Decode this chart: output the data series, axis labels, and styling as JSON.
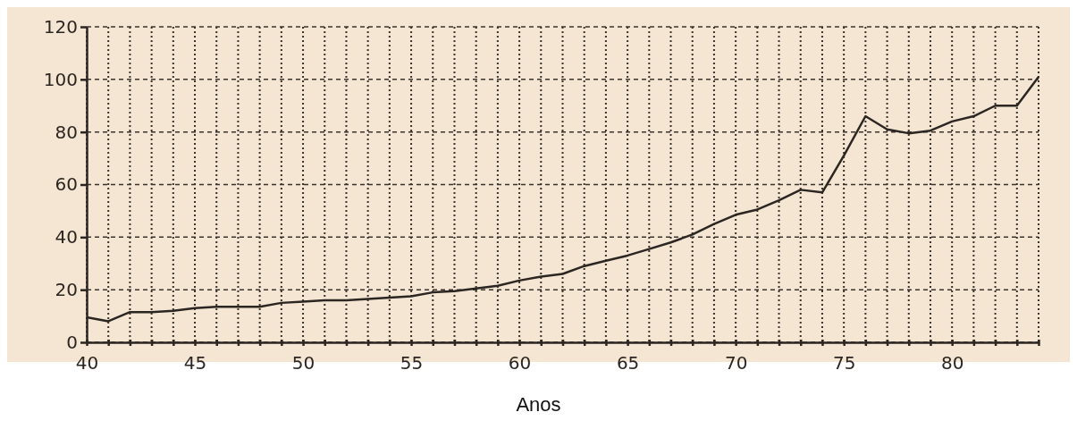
{
  "chart_data": {
    "type": "line",
    "xlabel": "Anos",
    "x": [
      40,
      41,
      42,
      43,
      44,
      45,
      46,
      47,
      48,
      49,
      50,
      51,
      52,
      53,
      54,
      55,
      56,
      57,
      58,
      59,
      60,
      61,
      62,
      63,
      64,
      65,
      66,
      67,
      68,
      69,
      70,
      71,
      72,
      73,
      74,
      75,
      76,
      77,
      78,
      79,
      80,
      81,
      82,
      83,
      84
    ],
    "series": [
      {
        "color": "#2b2622",
        "values": [
          9.5,
          8,
          11.5,
          11.5,
          12,
          13,
          13.5,
          13.5,
          13.5,
          15,
          15.5,
          16,
          16,
          16.5,
          17,
          17.5,
          19,
          19.5,
          20.5,
          21.5,
          23.5,
          25,
          26,
          29,
          31,
          33,
          35.5,
          38,
          41,
          45,
          48.5,
          50.5,
          54,
          58,
          57,
          71,
          86,
          81,
          79.5,
          80.5,
          84,
          86,
          90,
          90,
          101
        ]
      }
    ],
    "xlim": [
      40,
      84
    ],
    "xticks": [
      40,
      {
        "value": 41,
        "label": null
      },
      {
        "value": 42,
        "label": null
      },
      {
        "value": 43,
        "label": null
      },
      {
        "value": 44,
        "label": null
      },
      45,
      {
        "value": 46,
        "label": null
      },
      {
        "value": 47,
        "label": null
      },
      {
        "value": 48,
        "label": null
      },
      {
        "value": 49,
        "label": null
      },
      50,
      {
        "value": 51,
        "label": null
      },
      {
        "value": 52,
        "label": null
      },
      {
        "value": 53,
        "label": null
      },
      {
        "value": 54,
        "label": null
      },
      55,
      {
        "value": 56,
        "label": null
      },
      {
        "value": 57,
        "label": null
      },
      {
        "value": 58,
        "label": null
      },
      {
        "value": 59,
        "label": null
      },
      60,
      {
        "value": 61,
        "label": null
      },
      {
        "value": 62,
        "label": null
      },
      {
        "value": 63,
        "label": null
      },
      {
        "value": 64,
        "label": null
      },
      65,
      {
        "value": 66,
        "label": null
      },
      {
        "value": 67,
        "label": null
      },
      {
        "value": 68,
        "label": null
      },
      {
        "value": 69,
        "label": null
      },
      70,
      {
        "value": 71,
        "label": null
      },
      {
        "value": 72,
        "label": null
      },
      {
        "value": 73,
        "label": null
      },
      {
        "value": 74,
        "label": null
      },
      75,
      {
        "value": 76,
        "label": null
      },
      {
        "value": 77,
        "label": null
      },
      {
        "value": 78,
        "label": null
      },
      {
        "value": 79,
        "label": null
      },
      80,
      {
        "value": 81,
        "label": null
      },
      {
        "value": 82,
        "label": null
      },
      {
        "value": 83,
        "label": null
      },
      {
        "value": 84,
        "label": null
      }
    ],
    "ylim": [
      0,
      120
    ],
    "yticks": [
      0,
      20,
      40,
      60,
      80,
      100,
      120
    ],
    "grid": true,
    "marker": "none",
    "line_style": "solid"
  }
}
